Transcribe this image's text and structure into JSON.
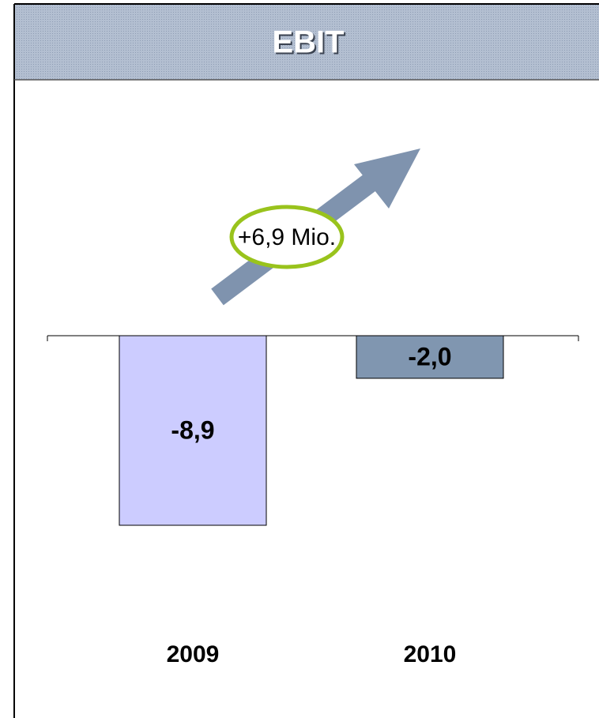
{
  "chart_data": {
    "type": "bar",
    "title": "EBIT",
    "categories": [
      "2009",
      "2010"
    ],
    "values": [
      -8.9,
      -2.0
    ],
    "value_labels": [
      "-8,9",
      "-2,0"
    ],
    "colors": [
      "#ccccff",
      "#8096b0"
    ],
    "annotation": "+6,9 Mio."
  }
}
